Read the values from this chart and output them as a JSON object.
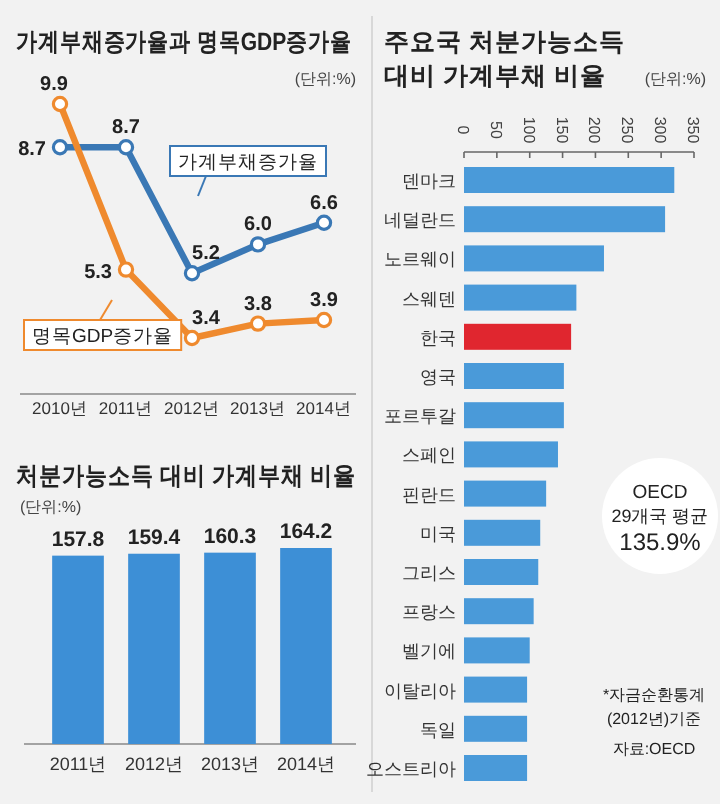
{
  "chart_data": [
    {
      "type": "line",
      "title": "가계부채증가율과 명목GDP증가율",
      "subtitle": "(단위:%)",
      "categories": [
        "2010년",
        "2011년",
        "2012년",
        "2013년",
        "2014년"
      ],
      "series": [
        {
          "name": "가계부채증가율",
          "color": "#3a78b5",
          "values": [
            8.7,
            8.7,
            5.2,
            6.0,
            6.6
          ],
          "value_labels": [
            "8.7",
            "8.7",
            "5.2",
            "6.0",
            "6.6"
          ]
        },
        {
          "name": "명목GDP증가율",
          "color": "#ef8a2e",
          "values": [
            9.9,
            5.3,
            3.4,
            3.8,
            3.9
          ],
          "value_labels": [
            "9.9",
            "5.3",
            "3.4",
            "3.8",
            "3.9"
          ]
        }
      ],
      "marker": "circle",
      "tick_labels": "x"
    },
    {
      "type": "bar",
      "title": "처분가능소득 대비 가계부채 비율",
      "subtitle": "(단위:%)",
      "categories": [
        "2011년",
        "2012년",
        "2013년",
        "2014년"
      ],
      "values": [
        157.8,
        159.4,
        160.3,
        164.2
      ],
      "color": "#3d8fd6",
      "data_labels": true,
      "tick_labels": "x"
    },
    {
      "type": "bar",
      "orientation": "horizontal",
      "title": "주요국 처분가능소득 대비 가계부채 비율",
      "subtitle": "(단위:%)",
      "categories": [
        "덴마크",
        "네덜란드",
        "노르웨이",
        "스웨덴",
        "한국",
        "영국",
        "포르투갈",
        "스페인",
        "핀란드",
        "미국",
        "그리스",
        "프랑스",
        "벨기에",
        "이탈리아",
        "독일",
        "오스트리아"
      ],
      "values": [
        320,
        306,
        213,
        171,
        163,
        152,
        152,
        143,
        125,
        116,
        113,
        106,
        100,
        96,
        96,
        96
      ],
      "colors": [
        "#4a9ad9",
        "#4a9ad9",
        "#4a9ad9",
        "#4a9ad9",
        "#e0262f",
        "#4a9ad9",
        "#4a9ad9",
        "#4a9ad9",
        "#4a9ad9",
        "#4a9ad9",
        "#4a9ad9",
        "#4a9ad9",
        "#4a9ad9",
        "#4a9ad9",
        "#4a9ad9",
        "#4a9ad9"
      ],
      "xlim": [
        0,
        350
      ],
      "xticks": [
        0,
        50,
        100,
        150,
        200,
        250,
        300,
        350
      ],
      "annotations": [
        "OECD",
        "29개국 평균",
        "135.9%",
        "*자금순환통계",
        "(2012년)기준",
        "자료:OECD"
      ]
    }
  ]
}
